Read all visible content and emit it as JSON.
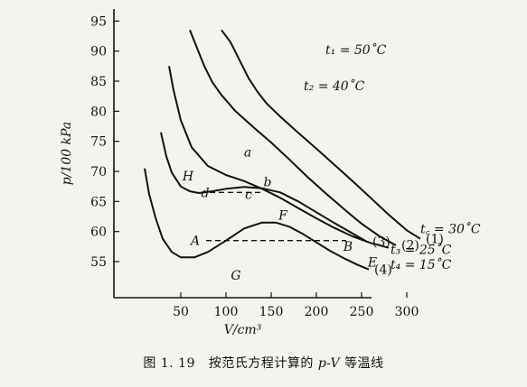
{
  "chart_data": {
    "type": "line",
    "title": "",
    "xlabel": "V/cm³",
    "ylabel": "p/100 kPa",
    "xlim": [
      35,
      330
    ],
    "ylim": [
      49,
      97
    ],
    "x_ticks": [
      50,
      100,
      150,
      200,
      250,
      300
    ],
    "y_ticks": [
      55,
      60,
      65,
      70,
      75,
      80,
      85,
      90,
      95
    ],
    "series": [
      {
        "name": "t1=50°C",
        "number": "(1)",
        "x": [
          95,
          105,
          115,
          125,
          135,
          145,
          160,
          180,
          200,
          220,
          240,
          260,
          280,
          300,
          315
        ],
        "y": [
          93.5,
          91.5,
          88.5,
          85.5,
          83.2,
          81.3,
          79.1,
          76.4,
          73.8,
          71.1,
          68.4,
          65.6,
          62.8,
          60.2,
          58.8
        ]
      },
      {
        "name": "t2=40°C",
        "number": "(2)",
        "x": [
          60,
          68,
          76,
          85,
          95,
          110,
          130,
          150,
          170,
          190,
          210,
          230,
          250,
          270,
          288
        ],
        "y": [
          93.5,
          90.5,
          87.5,
          84.8,
          82.7,
          80.1,
          77.4,
          74.8,
          72.0,
          69.1,
          66.4,
          63.8,
          61.3,
          59.2,
          57.7
        ]
      },
      {
        "name": "tc=30°C",
        "number": "",
        "x": [
          37,
          42,
          50,
          62,
          80,
          100,
          120,
          140,
          160,
          180,
          200,
          220,
          240,
          260,
          280
        ],
        "y": [
          87.5,
          83.5,
          78.5,
          74.0,
          70.9,
          69.4,
          68.4,
          67.1,
          65.6,
          63.9,
          62.2,
          60.6,
          59.2,
          58.1,
          57.3
        ]
      },
      {
        "name": "t3=25°C",
        "number": "(3)",
        "x": [
          28,
          34,
          40,
          50,
          60,
          70,
          85,
          100,
          120,
          140,
          160,
          180,
          200,
          220,
          240,
          256
        ],
        "y": [
          76.5,
          72.5,
          69.8,
          67.5,
          66.7,
          66.4,
          66.7,
          67.1,
          67.4,
          67.2,
          66.5,
          65.0,
          63.2,
          61.4,
          59.7,
          58.3
        ]
      },
      {
        "name": "t4=15°C",
        "number": "(4)",
        "x": [
          10,
          15,
          22,
          30,
          40,
          50,
          65,
          80,
          100,
          120,
          140,
          155,
          170,
          185,
          200,
          215,
          230,
          245,
          258
        ],
        "y": [
          70.5,
          66.2,
          62.3,
          58.8,
          56.6,
          55.7,
          55.7,
          56.6,
          58.5,
          60.5,
          61.5,
          61.5,
          60.8,
          59.6,
          58.2,
          56.8,
          55.6,
          54.5,
          53.7
        ]
      }
    ],
    "dashed_lines": [
      {
        "x": [
          78,
          233
        ],
        "y": [
          58.5,
          58.5
        ]
      },
      {
        "x": [
          82,
          138
        ],
        "y": [
          66.5,
          66.5
        ]
      }
    ],
    "point_labels": [
      {
        "text": "H",
        "x": 58,
        "y": 68.5
      },
      {
        "text": "A",
        "x": 66,
        "y": 57.8
      },
      {
        "text": "G",
        "x": 111,
        "y": 52
      },
      {
        "text": "F",
        "x": 163,
        "y": 62
      },
      {
        "text": "B",
        "x": 235,
        "y": 56.8
      },
      {
        "text": "E",
        "x": 262,
        "y": 54.2
      },
      {
        "text": "a",
        "x": 124,
        "y": 72.5
      },
      {
        "text": "b",
        "x": 146,
        "y": 67.5
      },
      {
        "text": "c",
        "x": 125,
        "y": 65.4
      },
      {
        "text": "d",
        "x": 77,
        "y": 65.7
      }
    ],
    "curve_labels": [
      {
        "text": "t₁ = 50˚C",
        "x": 210,
        "y": 89.5
      },
      {
        "text": "t₂ = 40˚C",
        "x": 186,
        "y": 83.5
      },
      {
        "text": "t꜀ = 30˚C",
        "x": 315,
        "y": 59.7
      },
      {
        "text": "t₃ = 25˚C",
        "x": 282,
        "y": 56.3
      },
      {
        "text": "t₄ = 15˚C",
        "x": 282,
        "y": 53.8
      }
    ]
  },
  "caption": {
    "figure_no": "图 1. 19",
    "text_before": "按范氏方程计算的",
    "formula": "p-V",
    "text_after": "等温线"
  }
}
